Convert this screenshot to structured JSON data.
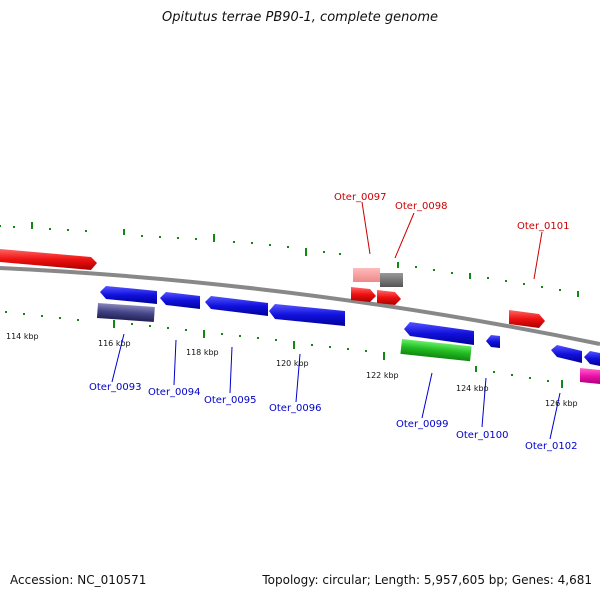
{
  "title": "Opitutus terrae PB90-1, complete genome",
  "footer": {
    "accession": "Accession: NC_010571",
    "summary": "Topology: circular; Length: 5,957,605 bp; Genes: 4,681"
  },
  "colors": {
    "forward_gene": "#ee1111",
    "reverse_gene": "#1111dd",
    "rna": "#22bb22",
    "pseudo": "#444488",
    "misc": "#ee11aa",
    "backbone": "#888888",
    "ticks": "#118811"
  },
  "kbp_labels": [
    "114 kbp",
    "116 kbp",
    "118 kbp",
    "120 kbp",
    "122 kbp",
    "124 kbp",
    "126 kbp"
  ],
  "gene_labels_forward": [
    "Oter_0097",
    "Oter_0098",
    "Oter_0101"
  ],
  "gene_labels_reverse": [
    "Oter_0093",
    "Oter_0094",
    "Oter_0095",
    "Oter_0096",
    "Oter_0099",
    "Oter_0100",
    "Oter_0102"
  ]
}
